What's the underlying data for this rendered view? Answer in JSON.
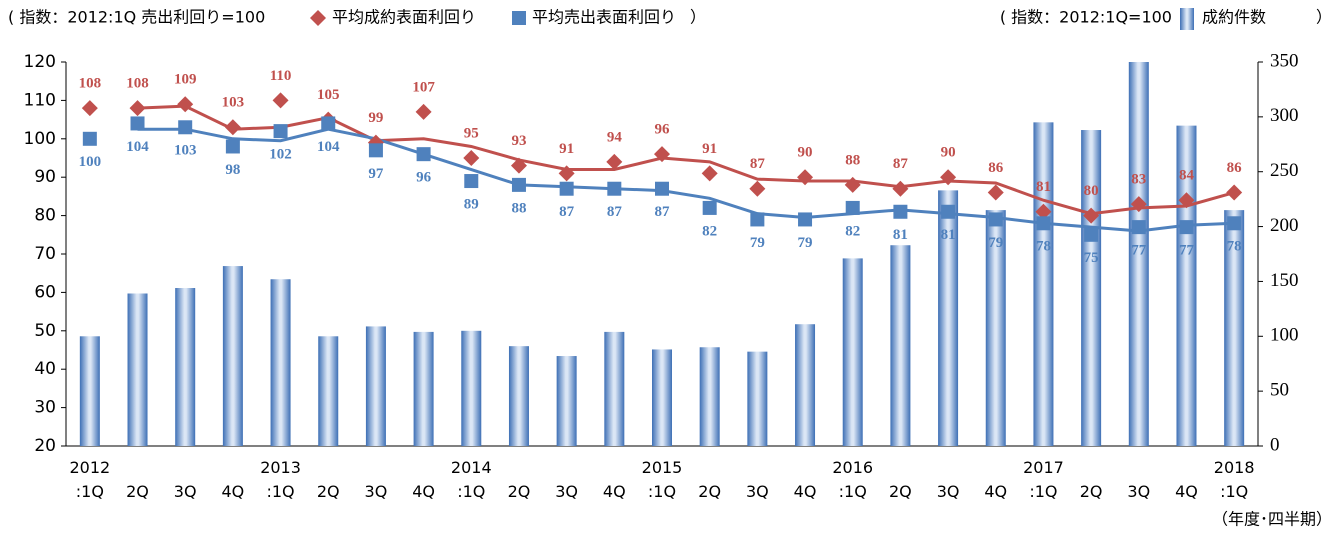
{
  "chart_data": {
    "type": "bar_line",
    "left_note": "( 指数：2012:1Q 売出利回り=100",
    "right_note": "( 指数：2012:1Q=100",
    "legend_close": "）",
    "x_label": "（年度･四半期）",
    "categories": [
      "2012\n:1Q",
      "2Q",
      "3Q",
      "4Q",
      "2013\n:1Q",
      "2Q",
      "3Q",
      "4Q",
      "2014\n:1Q",
      "2Q",
      "3Q",
      "4Q",
      "2015\n:1Q",
      "2Q",
      "3Q",
      "4Q",
      "2016\n:1Q",
      "2Q",
      "3Q",
      "4Q",
      "2017\n:1Q",
      "2Q",
      "3Q",
      "4Q",
      "2018\n:1Q"
    ],
    "bars": {
      "name": "成約件数",
      "color": "#5b8fd0",
      "axis": "y2",
      "values": [
        100,
        139,
        144,
        164,
        152,
        100,
        109,
        104,
        105,
        91,
        82,
        104,
        88,
        90,
        86,
        111,
        171,
        183,
        233,
        215,
        295,
        288,
        350,
        292,
        215
      ]
    },
    "series": [
      {
        "name": "平均成約表面利回り",
        "color": "#c0504d",
        "marker": "diamond",
        "values": [
          108,
          108,
          109,
          103,
          110,
          105,
          99,
          107,
          95,
          93,
          91,
          94,
          96,
          91,
          87,
          90,
          88,
          87,
          90,
          86,
          81,
          80,
          83,
          84,
          86
        ]
      },
      {
        "name": "平均売出表面利回り",
        "color": "#4f81bd",
        "marker": "square",
        "values": [
          100,
          104,
          103,
          98,
          102,
          104,
          97,
          96,
          89,
          88,
          87,
          87,
          87,
          82,
          79,
          79,
          82,
          81,
          81,
          79,
          78,
          75,
          77,
          77,
          78
        ]
      }
    ],
    "trend_lines": [
      {
        "color": "#c0504d",
        "values": [
          null,
          108,
          108.5,
          102.5,
          103,
          105.5,
          99.5,
          100,
          98,
          94.5,
          92,
          92,
          95,
          94,
          89.5,
          89,
          89,
          87.5,
          89,
          88.5,
          84,
          80.5,
          82,
          82.5,
          86
        ]
      },
      {
        "color": "#4f81bd",
        "values": [
          null,
          102.5,
          102.5,
          100,
          99.5,
          102.5,
          100,
          96,
          92,
          88,
          87.5,
          87,
          86.5,
          84.5,
          80.5,
          79.5,
          80.5,
          81.5,
          80.5,
          79.5,
          78,
          77,
          76,
          77.5,
          78
        ]
      }
    ],
    "ylim": [
      20,
      120
    ],
    "yticks": [
      20,
      30,
      40,
      50,
      60,
      70,
      80,
      90,
      100,
      110,
      120
    ],
    "y2lim": [
      0,
      350
    ],
    "y2ticks": [
      0,
      50,
      100,
      150,
      200,
      250,
      300,
      350
    ],
    "grid": false
  }
}
